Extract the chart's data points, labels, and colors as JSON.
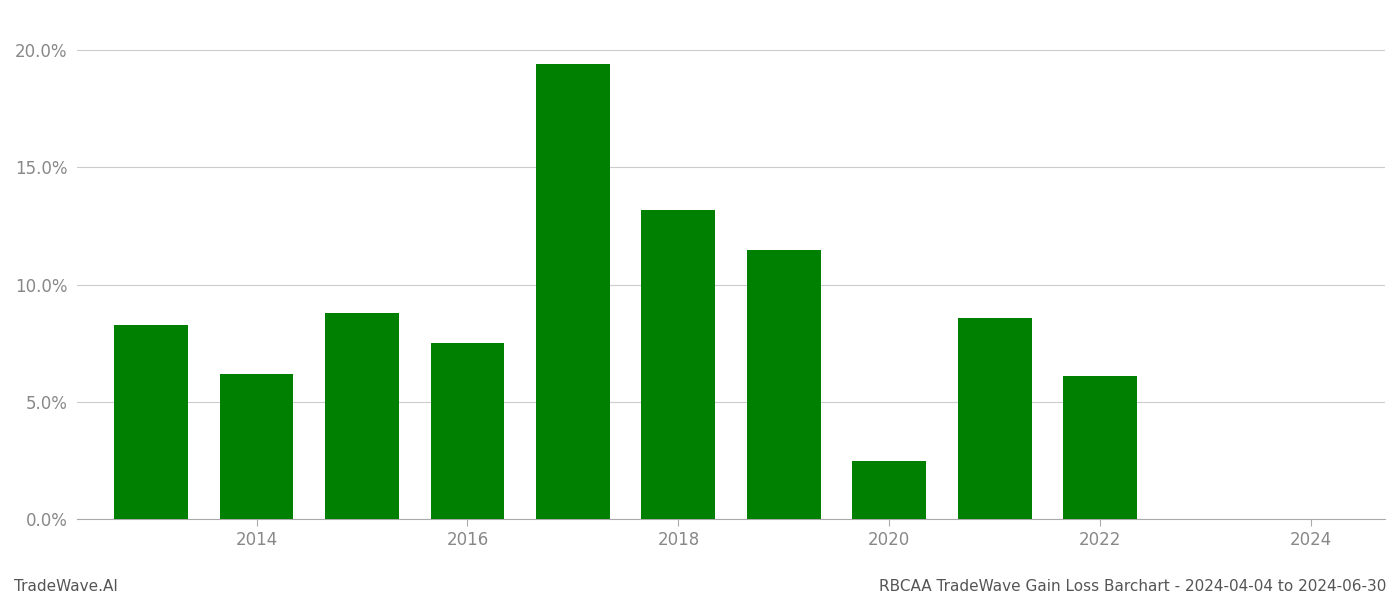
{
  "years": [
    2013,
    2014,
    2015,
    2016,
    2017,
    2018,
    2019,
    2020,
    2021,
    2022
  ],
  "values": [
    0.083,
    0.062,
    0.088,
    0.075,
    0.194,
    0.132,
    0.115,
    0.025,
    0.086,
    0.061
  ],
  "bar_color": "#008000",
  "title": "RBCAA TradeWave Gain Loss Barchart - 2024-04-04 to 2024-06-30",
  "watermark": "TradeWave.AI",
  "ylim": [
    0,
    0.215
  ],
  "yticks": [
    0.0,
    0.05,
    0.1,
    0.15,
    0.2
  ],
  "ytick_labels": [
    "0.0%",
    "5.0%",
    "10.0%",
    "15.0%",
    "20.0%"
  ],
  "xlim": [
    2012.3,
    2024.7
  ],
  "xticks": [
    2014,
    2016,
    2018,
    2020,
    2022,
    2024
  ],
  "background_color": "#ffffff",
  "grid_color": "#cccccc",
  "bar_width": 0.7,
  "title_fontsize": 11,
  "watermark_fontsize": 11,
  "axis_label_color": "#888888",
  "title_color": "#555555"
}
